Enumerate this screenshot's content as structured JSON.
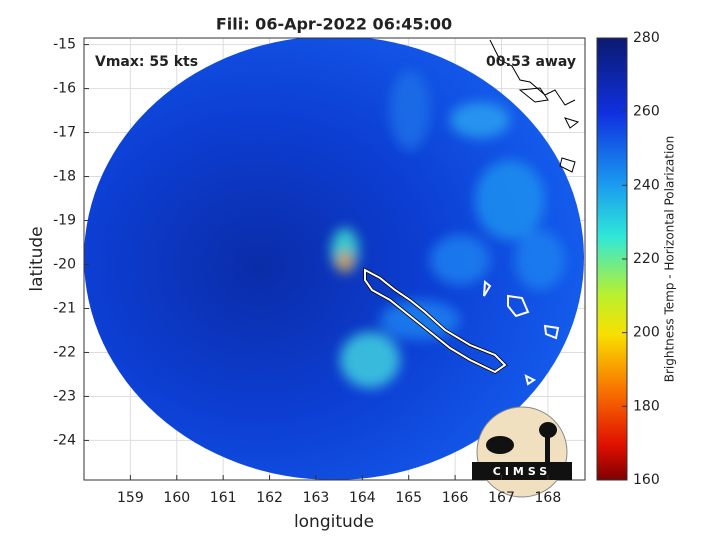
{
  "title": "Fili: 06-Apr-2022 06:45:00",
  "annotations": {
    "vmax": "Vmax: 55 kts",
    "time_away": "00:53 away"
  },
  "x_axis": {
    "label": "longitude",
    "lim": [
      158,
      168.8
    ],
    "ticks": [
      159,
      160,
      161,
      162,
      163,
      164,
      165,
      166,
      167,
      168
    ]
  },
  "y_axis": {
    "label": "latitude",
    "lim": [
      -24.9,
      -14.85
    ],
    "ticks": [
      -15,
      -16,
      -17,
      -18,
      -19,
      -20,
      -21,
      -22,
      -23,
      -24
    ]
  },
  "colorbar": {
    "label": "Brightness Temp - Horizontal Polarization",
    "lim": [
      160,
      280
    ],
    "ticks": [
      160,
      180,
      200,
      220,
      240,
      260,
      280
    ]
  },
  "logo": "CIMSS"
}
